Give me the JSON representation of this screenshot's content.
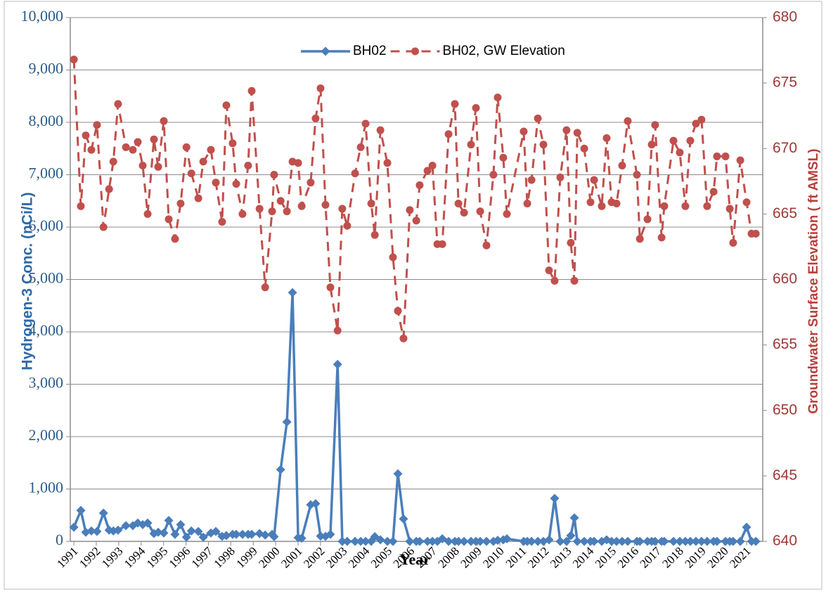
{
  "chart_data": {
    "type": "line",
    "x_label": "Year",
    "y_label": "Hydrogen-3 Conc. (nCi/L)",
    "y2_label": "Groundwater Surface Elevation ( ft AMSL)",
    "legend": "top",
    "grid": true,
    "xlim": [
      1990.84,
      2021.72
    ],
    "xticks": [
      1991,
      1992,
      1993,
      1994,
      1995,
      1996,
      1997,
      1998,
      1999,
      2000,
      2001,
      2002,
      2003,
      2004,
      2005,
      2006,
      2007,
      2008,
      2009,
      2010,
      2011,
      2012,
      2013,
      2014,
      2015,
      2016,
      2017,
      2018,
      2019,
      2020,
      2021
    ],
    "ylim": [
      0,
      10000
    ],
    "yticks": [
      0,
      {
        "value": 1000,
        "label": "1,000"
      },
      {
        "value": 2000,
        "label": "2,000"
      },
      {
        "value": 3000,
        "label": "3,000"
      },
      {
        "value": 4000,
        "label": "4,000"
      },
      {
        "value": 5000,
        "label": "5,000"
      },
      {
        "value": 6000,
        "label": "6,000"
      },
      {
        "value": 7000,
        "label": "7,000"
      },
      {
        "value": 8000,
        "label": "8,000"
      },
      {
        "value": 9000,
        "label": "9,000"
      },
      {
        "value": 10000,
        "label": "10,000"
      }
    ],
    "y2lim": [
      640,
      680
    ],
    "y2ticks": [
      640,
      645,
      650,
      655,
      660,
      665,
      670,
      675,
      680
    ],
    "x": [
      1991.0,
      1991.31,
      1991.53,
      1991.78,
      1992.03,
      1992.32,
      1992.57,
      1992.76,
      1992.97,
      1993.32,
      1993.63,
      1993.85,
      1994.07,
      1994.29,
      1994.57,
      1994.76,
      1995.01,
      1995.23,
      1995.51,
      1995.76,
      1996.02,
      1996.24,
      1996.55,
      1996.77,
      1997.11,
      1997.33,
      1997.61,
      1997.8,
      1998.08,
      1998.24,
      1998.52,
      1998.77,
      1998.93,
      1999.28,
      1999.53,
      1999.84,
      1999.93,
      2000.22,
      2000.5,
      2000.75,
      2001.0,
      2001.16,
      2001.56,
      2001.78,
      2002.0,
      2002.22,
      2002.44,
      2002.76,
      2002.97,
      2003.19,
      2003.54,
      2003.79,
      2004.01,
      2004.26,
      2004.42,
      2004.67,
      2004.98,
      2005.23,
      2005.45,
      2005.7,
      2005.98,
      2006.27,
      2006.42,
      2006.77,
      2006.99,
      2007.21,
      2007.43,
      2007.71,
      2007.99,
      2008.15,
      2008.4,
      2008.71,
      2008.93,
      2009.12,
      2009.4,
      2009.71,
      2009.9,
      2010.15,
      2010.31,
      2011.06,
      2011.22,
      2011.41,
      2011.69,
      2011.94,
      2012.19,
      2012.44,
      2012.69,
      2012.97,
      2013.16,
      2013.32,
      2013.45,
      2013.76,
      2014.04,
      2014.2,
      2014.54,
      2014.76,
      2014.98,
      2015.2,
      2015.45,
      2015.7,
      2016.11,
      2016.24,
      2016.58,
      2016.77,
      2016.92,
      2017.21,
      2017.33,
      2017.74,
      2018.02,
      2018.27,
      2018.49,
      2018.74,
      2018.99,
      2019.24,
      2019.53,
      2019.68,
      2020.06,
      2020.25,
      2020.4,
      2020.72,
      2021.0,
      2021.22,
      2021.41
    ],
    "series": [
      {
        "name": "BH02",
        "color": "#4a7ebb",
        "marker": "diamond",
        "dash": false,
        "values": [
          270,
          590,
          175,
          200,
          190,
          540,
          215,
          200,
          215,
          300,
          300,
          350,
          320,
          350,
          150,
          175,
          160,
          400,
          135,
          320,
          80,
          200,
          190,
          80,
          160,
          190,
          95,
          110,
          135,
          135,
          135,
          135,
          135,
          150,
          120,
          135,
          90,
          1370,
          2280,
          4750,
          70,
          60,
          700,
          720,
          100,
          95,
          135,
          3380,
          0,
          0,
          0,
          0,
          0,
          0,
          90,
          30,
          0,
          0,
          1290,
          430,
          0,
          0,
          0,
          0,
          0,
          0,
          50,
          0,
          0,
          0,
          0,
          0,
          0,
          0,
          0,
          0,
          20,
          30,
          50,
          0,
          0,
          0,
          0,
          0,
          30,
          820,
          0,
          0,
          110,
          450,
          0,
          0,
          0,
          0,
          0,
          30,
          0,
          0,
          0,
          0,
          0,
          0,
          0,
          0,
          0,
          0,
          0,
          0,
          0,
          0,
          0,
          0,
          0,
          0,
          0,
          0,
          0,
          0,
          0,
          0,
          270,
          0,
          0
        ]
      },
      {
        "name": "BH02, GW Elevation",
        "color": "#c0504d",
        "marker": "circle",
        "dash": true,
        "axis": "y2",
        "values": [
          676.8,
          665.6,
          671.0,
          669.9,
          671.8,
          664.0,
          666.9,
          669.0,
          673.4,
          670.1,
          669.9,
          670.5,
          668.7,
          665.0,
          670.7,
          668.6,
          672.1,
          664.6,
          663.1,
          665.8,
          670.1,
          668.1,
          666.2,
          669.0,
          669.9,
          667.4,
          664.4,
          673.3,
          670.4,
          667.3,
          665.0,
          668.7,
          674.4,
          665.4,
          659.4,
          665.2,
          668.0,
          666.0,
          665.2,
          669.0,
          668.9,
          665.6,
          667.4,
          672.3,
          674.6,
          665.7,
          659.4,
          656.1,
          665.4,
          664.1,
          668.1,
          670.1,
          671.9,
          665.8,
          663.4,
          671.4,
          668.9,
          661.7,
          657.6,
          655.5,
          665.3,
          664.5,
          667.2,
          668.3,
          668.7,
          662.7,
          662.7,
          671.1,
          673.4,
          665.8,
          665.1,
          670.3,
          673.1,
          665.2,
          662.6,
          668.0,
          673.9,
          669.3,
          665.0,
          671.3,
          665.8,
          667.6,
          672.3,
          670.3,
          660.7,
          659.9,
          667.8,
          671.4,
          662.8,
          659.9,
          671.2,
          670.0,
          665.9,
          667.6,
          665.6,
          670.8,
          665.9,
          665.8,
          668.7,
          672.1,
          668.0,
          663.1,
          664.6,
          670.3,
          671.8,
          663.2,
          665.6,
          670.6,
          669.7,
          665.6,
          670.6,
          671.9,
          672.2,
          665.6,
          666.7,
          669.4,
          669.4,
          665.4,
          662.8,
          669.1,
          665.9,
          663.5,
          663.5
        ]
      }
    ]
  }
}
